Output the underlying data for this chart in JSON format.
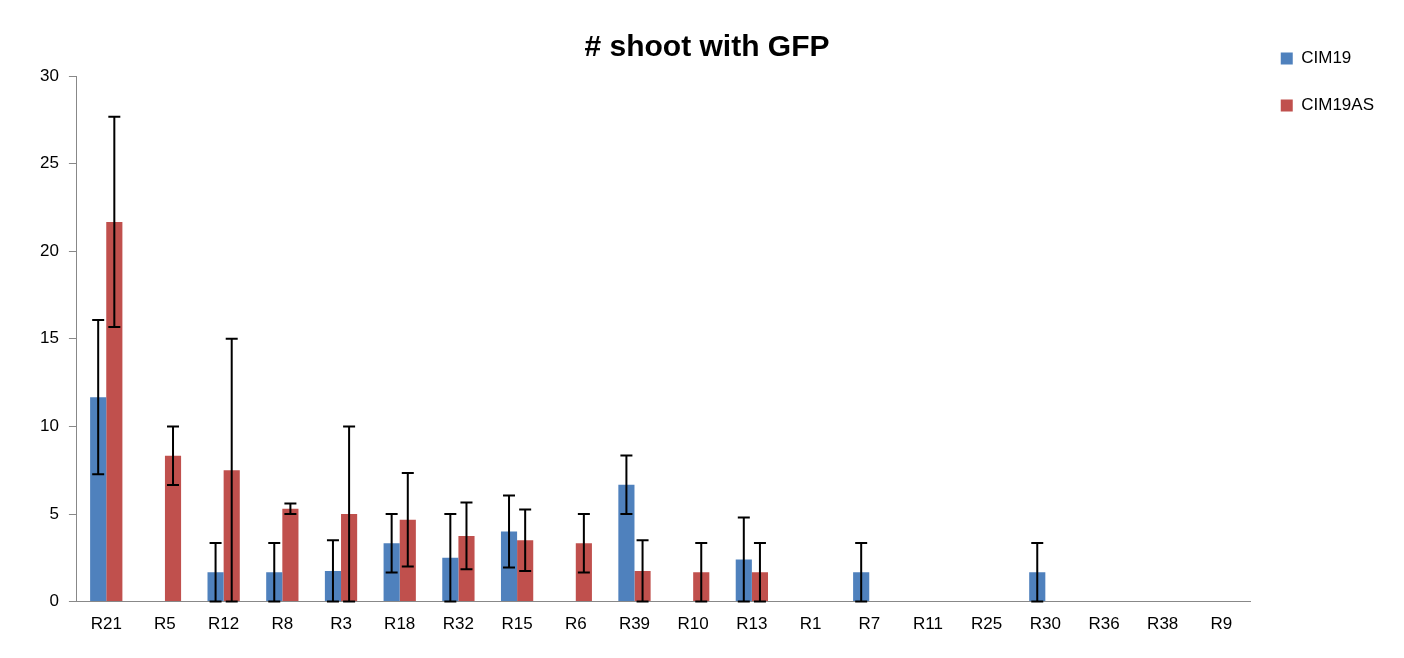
{
  "chart_data": {
    "type": "bar",
    "title": "# shoot with GFP",
    "categories": [
      "R21",
      "R5",
      "R12",
      "R8",
      "R3",
      "R18",
      "R32",
      "R15",
      "R6",
      "R39",
      "R10",
      "R13",
      "R1",
      "R7",
      "R11",
      "R25",
      "R30",
      "R36",
      "R38",
      "R9"
    ],
    "series": [
      {
        "name": "CIM19",
        "color": "#4f81bd",
        "values": [
          11.67,
          0,
          1.67,
          1.67,
          1.75,
          3.33,
          2.5,
          4.0,
          0,
          6.67,
          0,
          2.4,
          0,
          1.67,
          0,
          0,
          1.67,
          0,
          0,
          0
        ],
        "errors": [
          4.4,
          null,
          1.67,
          1.67,
          1.75,
          1.67,
          2.5,
          2.05,
          null,
          1.67,
          null,
          2.4,
          null,
          1.67,
          null,
          null,
          1.67,
          null,
          null,
          null
        ]
      },
      {
        "name": "CIM19AS",
        "color": "#c0504d",
        "values": [
          21.67,
          8.33,
          7.5,
          5.3,
          5,
          4.67,
          3.75,
          3.5,
          3.33,
          1.75,
          1.67,
          1.67,
          0,
          0,
          0,
          0,
          0,
          0,
          0,
          0
        ],
        "errors": [
          6.0,
          1.67,
          7.5,
          0.3,
          5,
          2.67,
          1.9,
          1.75,
          1.67,
          1.75,
          1.67,
          1.67,
          null,
          null,
          null,
          null,
          null,
          null,
          null,
          null
        ]
      }
    ],
    "ylim": [
      0,
      30
    ],
    "yticks": [
      0,
      5,
      10,
      15,
      20,
      25,
      30
    ],
    "grid": false,
    "legend": "top right"
  }
}
